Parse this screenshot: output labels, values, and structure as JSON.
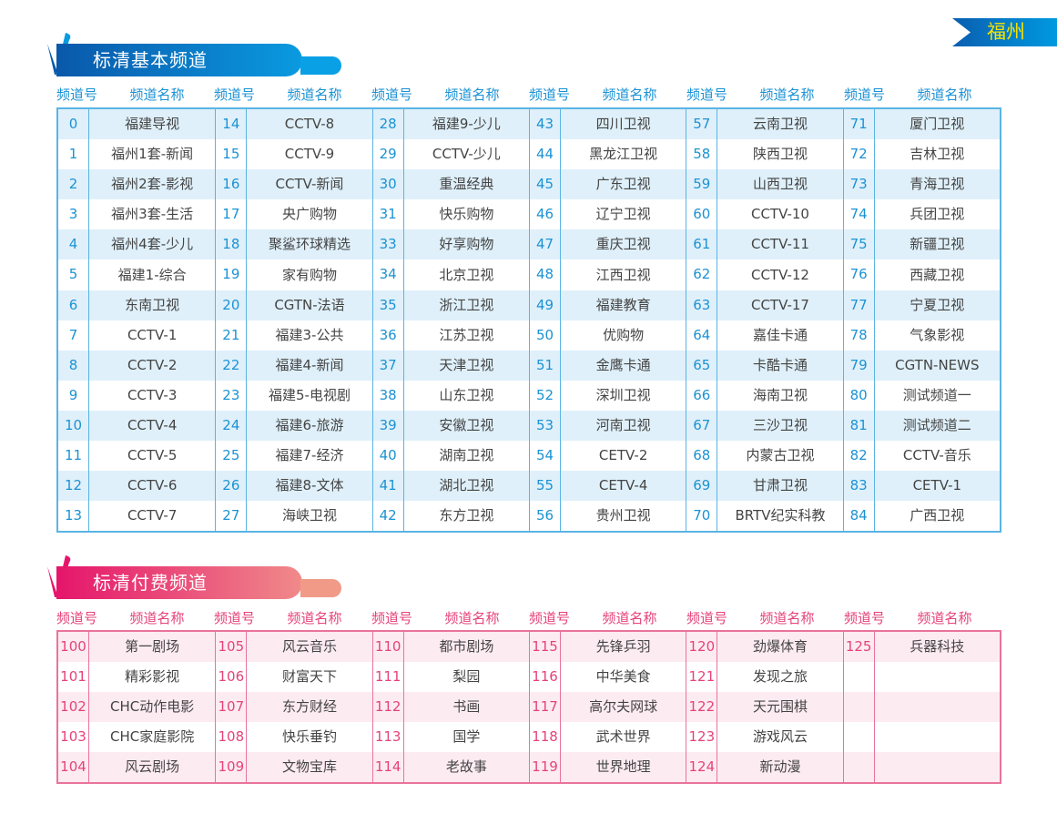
{
  "city": "福州",
  "colors": {
    "basic": "#1b92d4",
    "pay": "#e54379"
  },
  "basic": {
    "title": "标清基本频道",
    "header": {
      "num": "频道号",
      "name": "频道名称"
    },
    "groups": [
      [
        [
          "0",
          "福建导视"
        ],
        [
          "1",
          "福州1套-新闻"
        ],
        [
          "2",
          "福州2套-影视"
        ],
        [
          "3",
          "福州3套-生活"
        ],
        [
          "4",
          "福州4套-少儿"
        ],
        [
          "5",
          "福建1-综合"
        ],
        [
          "6",
          "东南卫视"
        ],
        [
          "7",
          "CCTV-1"
        ],
        [
          "8",
          "CCTV-2"
        ],
        [
          "9",
          "CCTV-3"
        ],
        [
          "10",
          "CCTV-4"
        ],
        [
          "11",
          "CCTV-5"
        ],
        [
          "12",
          "CCTV-6"
        ],
        [
          "13",
          "CCTV-7"
        ]
      ],
      [
        [
          "14",
          "CCTV-8"
        ],
        [
          "15",
          "CCTV-9"
        ],
        [
          "16",
          "CCTV-新闻"
        ],
        [
          "17",
          "央广购物"
        ],
        [
          "18",
          "聚鲨环球精选"
        ],
        [
          "19",
          "家有购物"
        ],
        [
          "20",
          "CGTN-法语"
        ],
        [
          "21",
          "福建3-公共"
        ],
        [
          "22",
          "福建4-新闻"
        ],
        [
          "23",
          "福建5-电视剧"
        ],
        [
          "24",
          "福建6-旅游"
        ],
        [
          "25",
          "福建7-经济"
        ],
        [
          "26",
          "福建8-文体"
        ],
        [
          "27",
          "海峡卫视"
        ]
      ],
      [
        [
          "28",
          "福建9-少儿"
        ],
        [
          "29",
          "CCTV-少儿"
        ],
        [
          "30",
          "重温经典"
        ],
        [
          "31",
          "快乐购物"
        ],
        [
          "33",
          "好享购物"
        ],
        [
          "34",
          "北京卫视"
        ],
        [
          "35",
          "浙江卫视"
        ],
        [
          "36",
          "江苏卫视"
        ],
        [
          "37",
          "天津卫视"
        ],
        [
          "38",
          "山东卫视"
        ],
        [
          "39",
          "安徽卫视"
        ],
        [
          "40",
          "湖南卫视"
        ],
        [
          "41",
          "湖北卫视"
        ],
        [
          "42",
          "东方卫视"
        ]
      ],
      [
        [
          "43",
          "四川卫视"
        ],
        [
          "44",
          "黑龙江卫视"
        ],
        [
          "45",
          "广东卫视"
        ],
        [
          "46",
          "辽宁卫视"
        ],
        [
          "47",
          "重庆卫视"
        ],
        [
          "48",
          "江西卫视"
        ],
        [
          "49",
          "福建教育"
        ],
        [
          "50",
          "优购物"
        ],
        [
          "51",
          "金鹰卡通"
        ],
        [
          "52",
          "深圳卫视"
        ],
        [
          "53",
          "河南卫视"
        ],
        [
          "54",
          "CETV-2"
        ],
        [
          "55",
          "CETV-4"
        ],
        [
          "56",
          "贵州卫视"
        ]
      ],
      [
        [
          "57",
          "云南卫视"
        ],
        [
          "58",
          "陕西卫视"
        ],
        [
          "59",
          "山西卫视"
        ],
        [
          "60",
          "CCTV-10"
        ],
        [
          "61",
          "CCTV-11"
        ],
        [
          "62",
          "CCTV-12"
        ],
        [
          "63",
          "CCTV-17"
        ],
        [
          "64",
          "嘉佳卡通"
        ],
        [
          "65",
          "卡酷卡通"
        ],
        [
          "66",
          "海南卫视"
        ],
        [
          "67",
          "三沙卫视"
        ],
        [
          "68",
          "内蒙古卫视"
        ],
        [
          "69",
          "甘肃卫视"
        ],
        [
          "70",
          "BRTV纪实科教"
        ]
      ],
      [
        [
          "71",
          "厦门卫视"
        ],
        [
          "72",
          "吉林卫视"
        ],
        [
          "73",
          "青海卫视"
        ],
        [
          "74",
          "兵团卫视"
        ],
        [
          "75",
          "新疆卫视"
        ],
        [
          "76",
          "西藏卫视"
        ],
        [
          "77",
          "宁夏卫视"
        ],
        [
          "78",
          "气象影视"
        ],
        [
          "79",
          "CGTN-NEWS"
        ],
        [
          "80",
          "测试频道一"
        ],
        [
          "81",
          "测试频道二"
        ],
        [
          "82",
          "CCTV-音乐"
        ],
        [
          "83",
          "CETV-1"
        ],
        [
          "84",
          "广西卫视"
        ]
      ]
    ]
  },
  "pay": {
    "title": "标清付费频道",
    "header": {
      "num": "频道号",
      "name": "频道名称"
    },
    "groups": [
      [
        [
          "100",
          "第一剧场"
        ],
        [
          "101",
          "精彩影视"
        ],
        [
          "102",
          "CHC动作电影"
        ],
        [
          "103",
          "CHC家庭影院"
        ],
        [
          "104",
          "风云剧场"
        ]
      ],
      [
        [
          "105",
          "风云音乐"
        ],
        [
          "106",
          "财富天下"
        ],
        [
          "107",
          "东方财经"
        ],
        [
          "108",
          "快乐垂钓"
        ],
        [
          "109",
          "文物宝库"
        ]
      ],
      [
        [
          "110",
          "都市剧场"
        ],
        [
          "111",
          "梨园"
        ],
        [
          "112",
          "书画"
        ],
        [
          "113",
          "国学"
        ],
        [
          "114",
          "老故事"
        ]
      ],
      [
        [
          "115",
          "先锋乒羽"
        ],
        [
          "116",
          "中华美食"
        ],
        [
          "117",
          "高尔夫网球"
        ],
        [
          "118",
          "武术世界"
        ],
        [
          "119",
          "世界地理"
        ]
      ],
      [
        [
          "120",
          "劲爆体育"
        ],
        [
          "121",
          "发现之旅"
        ],
        [
          "122",
          "天元围棋"
        ],
        [
          "123",
          "游戏风云"
        ],
        [
          "124",
          "新动漫"
        ]
      ],
      [
        [
          "125",
          "兵器科技"
        ],
        [
          "",
          ""
        ],
        [
          "",
          ""
        ],
        [
          "",
          ""
        ],
        [
          "",
          ""
        ]
      ]
    ]
  }
}
